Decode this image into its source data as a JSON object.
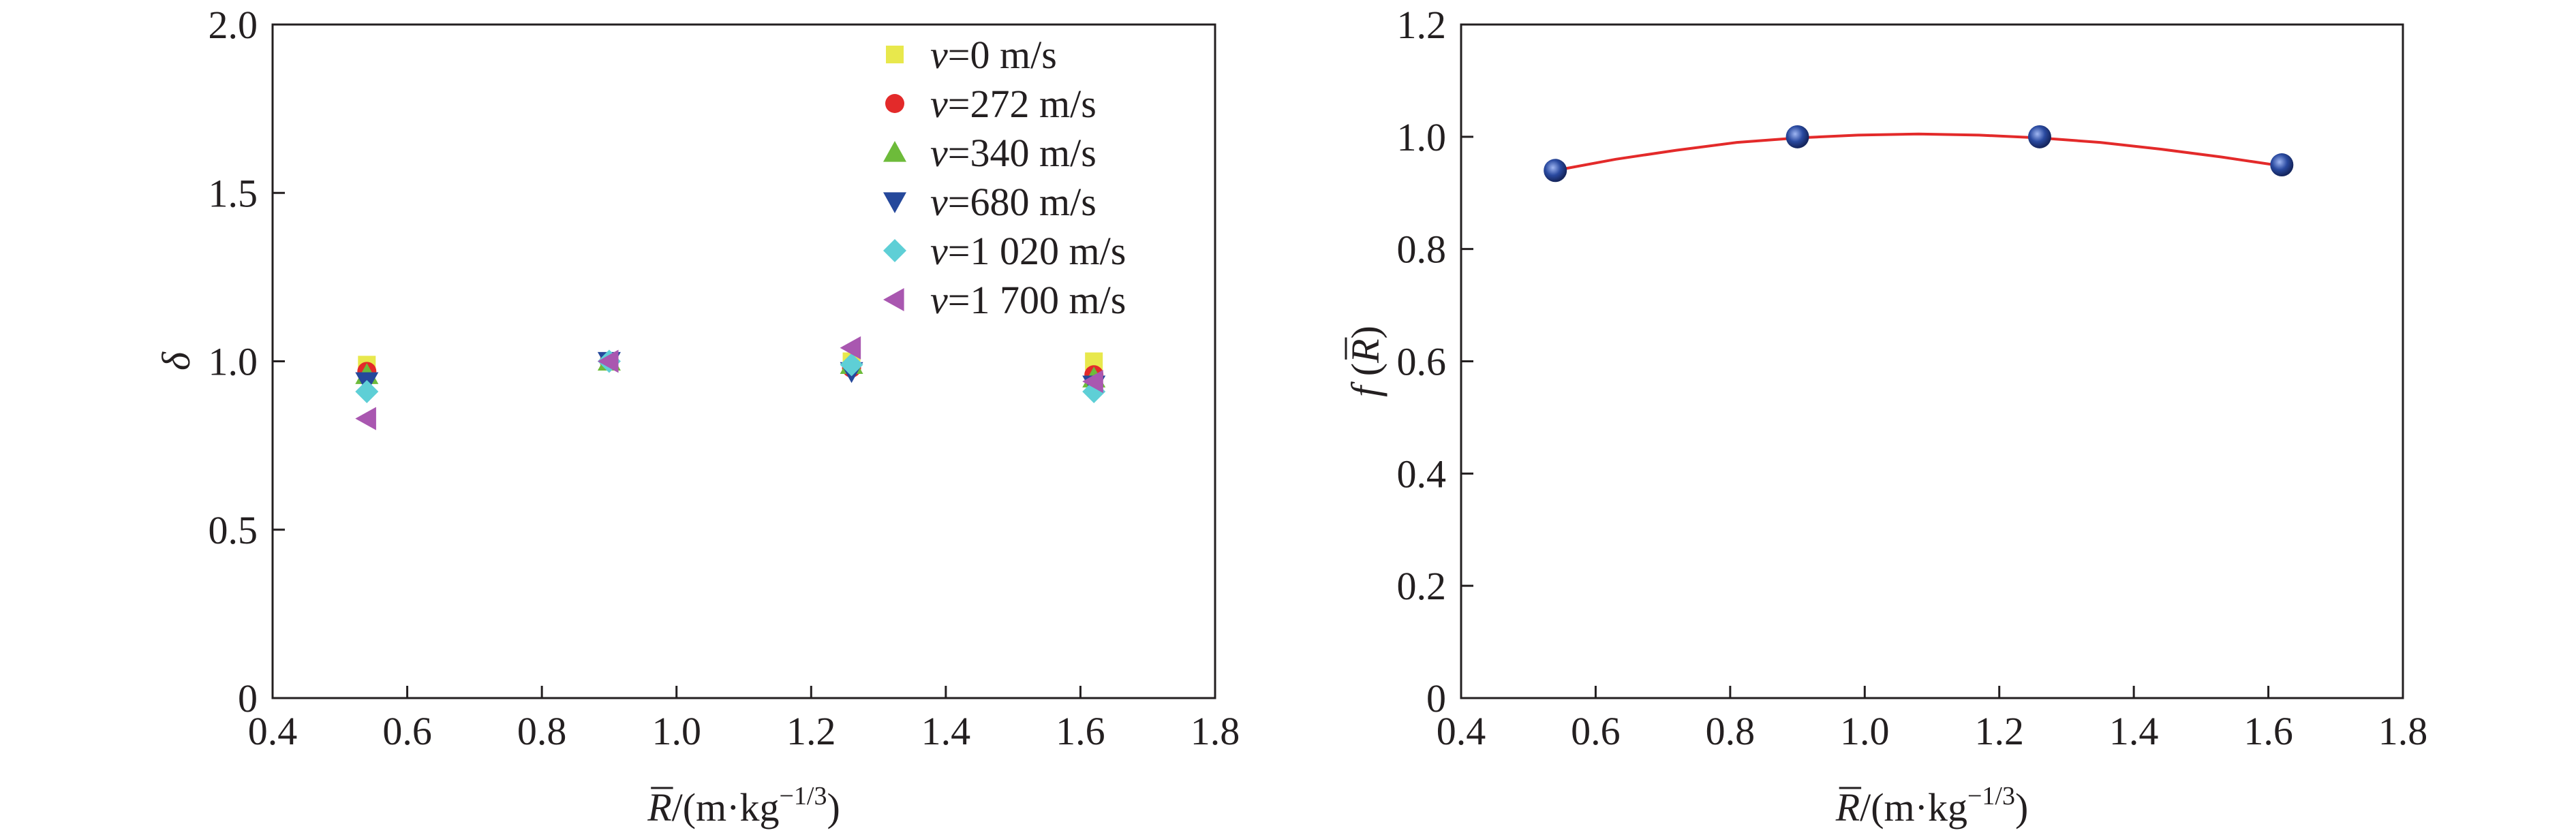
{
  "chart_data": [
    {
      "type": "scatter",
      "xlabel": "R̄/(m·kg⁻¹ᐟ³)",
      "xlabel_parts": {
        "symbol": "R",
        "unit_open": "/(m·kg",
        "exponent": "−1/3",
        "unit_close": ")"
      },
      "ylabel": "δ",
      "xlim": [
        0.4,
        1.8
      ],
      "ylim": [
        0,
        2.0
      ],
      "xticks": [
        0.4,
        0.6,
        0.8,
        1.0,
        1.2,
        1.4,
        1.6,
        1.8
      ],
      "xtick_labels": [
        "0.4",
        "0.6",
        "0.8",
        "1.0",
        "1.2",
        "1.4",
        "1.6",
        "1.8"
      ],
      "yticks": [
        0,
        0.5,
        1.0,
        1.5,
        2.0
      ],
      "ytick_labels": [
        "0",
        "0.5",
        "1.0",
        "1.5",
        "2.0"
      ],
      "grid": false,
      "legend_position": "top-right",
      "series": [
        {
          "name": "v=0 m/s",
          "legend_var": "v",
          "legend_rest": "=0 m/s",
          "marker": "square",
          "color": "#e8e84c",
          "points": [
            [
              0.54,
              0.99
            ],
            [
              0.9,
              1.0
            ],
            [
              1.26,
              1.0
            ],
            [
              1.62,
              1.0
            ]
          ]
        },
        {
          "name": "v=272 m/s",
          "legend_var": "v",
          "legend_rest": "=272 m/s",
          "marker": "circle",
          "color": "#e32a2a",
          "points": [
            [
              0.54,
              0.97
            ],
            [
              0.9,
              1.0
            ],
            [
              1.26,
              0.98
            ],
            [
              1.62,
              0.96
            ]
          ]
        },
        {
          "name": "v=340 m/s",
          "legend_var": "v",
          "legend_rest": "=340 m/s",
          "marker": "triangle-up",
          "color": "#6dbb3a",
          "points": [
            [
              0.54,
              0.96
            ],
            [
              0.9,
              1.0
            ],
            [
              1.26,
              0.99
            ],
            [
              1.62,
              0.95
            ]
          ]
        },
        {
          "name": "v=680 m/s",
          "legend_var": "v",
          "legend_rest": "=680 m/s",
          "marker": "triangle-down",
          "color": "#25489b",
          "points": [
            [
              0.54,
              0.94
            ],
            [
              0.9,
              1.0
            ],
            [
              1.26,
              0.97
            ],
            [
              1.62,
              0.93
            ]
          ]
        },
        {
          "name": "v=1 020 m/s",
          "legend_var": "v",
          "legend_rest": "=1 020 m/s",
          "marker": "diamond",
          "color": "#5ecfd6",
          "points": [
            [
              0.54,
              0.91
            ],
            [
              0.9,
              1.0
            ],
            [
              1.26,
              0.99
            ],
            [
              1.62,
              0.91
            ]
          ]
        },
        {
          "name": "v=1 700 m/s",
          "legend_var": "v",
          "legend_rest": "=1 700 m/s",
          "marker": "triangle-left",
          "color": "#a957b0",
          "points": [
            [
              0.54,
              0.83
            ],
            [
              0.9,
              1.0
            ],
            [
              1.26,
              1.04
            ],
            [
              1.62,
              0.94
            ]
          ]
        }
      ]
    },
    {
      "type": "line",
      "xlabel": "R̄/(m·kg⁻¹ᐟ³)",
      "xlabel_parts": {
        "symbol": "R",
        "unit_open": "/(m·kg",
        "exponent": "−1/3",
        "unit_close": ")"
      },
      "ylabel": "f (R̄)",
      "ylabel_parts": {
        "func": "f",
        "symbol": "R"
      },
      "xlim": [
        0.4,
        1.8
      ],
      "ylim": [
        0,
        1.2
      ],
      "xticks": [
        0.4,
        0.6,
        0.8,
        1.0,
        1.2,
        1.4,
        1.6,
        1.8
      ],
      "xtick_labels": [
        "0.4",
        "0.6",
        "0.8",
        "1.0",
        "1.2",
        "1.4",
        "1.6",
        "1.8"
      ],
      "yticks": [
        0,
        0.2,
        0.4,
        0.6,
        0.8,
        1.0,
        1.2
      ],
      "ytick_labels": [
        "0",
        "0.2",
        "0.4",
        "0.6",
        "0.8",
        "1.0",
        "1.2"
      ],
      "grid": false,
      "points": [
        [
          0.54,
          0.94
        ],
        [
          0.9,
          1.0
        ],
        [
          1.26,
          1.0
        ],
        [
          1.62,
          0.95
        ]
      ],
      "point_color": "#2a4aa0",
      "fit_curve": {
        "x": [
          0.54,
          0.63,
          0.72,
          0.81,
          0.9,
          0.99,
          1.08,
          1.17,
          1.26,
          1.35,
          1.44,
          1.53,
          1.62
        ],
        "y": [
          0.94,
          0.96,
          0.976,
          0.99,
          0.998,
          1.003,
          1.005,
          1.003,
          0.998,
          0.99,
          0.978,
          0.964,
          0.948
        ],
        "color": "#e32a2a"
      }
    }
  ]
}
